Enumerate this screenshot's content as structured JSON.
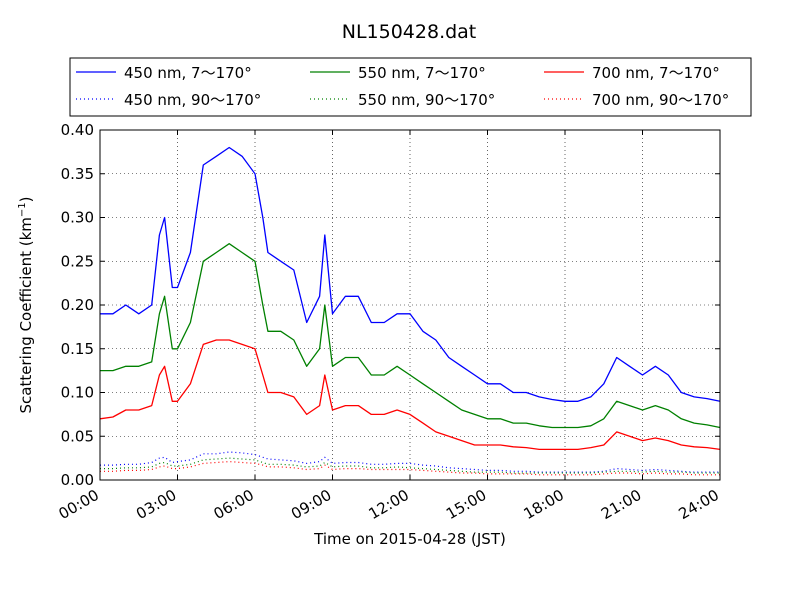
{
  "chart_data": {
    "type": "line",
    "title": "NL150428.dat",
    "xlabel": "Time on 2015-04-28 (JST)",
    "ylabel": "Scattering Coefficient (km",
    "ylabel_sup": "−1",
    "ylabel_close": ")",
    "xlim": [
      0,
      24
    ],
    "ylim": [
      0,
      0.4
    ],
    "x_ticks": [
      0,
      3,
      6,
      9,
      12,
      15,
      18,
      21,
      24
    ],
    "x_tick_labels": [
      "00:00",
      "03:00",
      "06:00",
      "09:00",
      "12:00",
      "15:00",
      "18:00",
      "21:00",
      "24:00"
    ],
    "y_ticks": [
      0,
      0.05,
      0.1,
      0.15,
      0.2,
      0.25,
      0.3,
      0.35,
      0.4
    ],
    "y_tick_labels": [
      "0.00",
      "0.05",
      "0.10",
      "0.15",
      "0.20",
      "0.25",
      "0.30",
      "0.35",
      "0.40"
    ],
    "grid": true,
    "legend_position": "top, above plot",
    "x": [
      0,
      0.5,
      1,
      1.5,
      2,
      2.3,
      2.5,
      2.8,
      3,
      3.5,
      4,
      4.5,
      5,
      5.5,
      6,
      6.3,
      6.5,
      7,
      7.5,
      8,
      8.5,
      8.7,
      9,
      9.5,
      10,
      10.5,
      11,
      11.5,
      12,
      12.5,
      13,
      13.5,
      14,
      14.5,
      15,
      15.5,
      16,
      16.5,
      17,
      17.5,
      18,
      18.5,
      19,
      19.5,
      20,
      20.5,
      21,
      21.5,
      22,
      22.5,
      23,
      23.5,
      24
    ],
    "series": [
      {
        "name": "450 nm, 7～170°",
        "color": "#0000ff",
        "style": "solid",
        "values": [
          0.19,
          0.19,
          0.2,
          0.19,
          0.2,
          0.28,
          0.3,
          0.22,
          0.22,
          0.26,
          0.36,
          0.37,
          0.38,
          0.37,
          0.35,
          0.3,
          0.26,
          0.25,
          0.24,
          0.18,
          0.21,
          0.28,
          0.19,
          0.21,
          0.21,
          0.18,
          0.18,
          0.19,
          0.19,
          0.17,
          0.16,
          0.14,
          0.13,
          0.12,
          0.11,
          0.11,
          0.1,
          0.1,
          0.095,
          0.092,
          0.09,
          0.09,
          0.095,
          0.11,
          0.14,
          0.13,
          0.12,
          0.13,
          0.12,
          0.1,
          0.095,
          0.093,
          0.09
        ]
      },
      {
        "name": "450 nm, 90～170°",
        "color": "#0000ff",
        "style": "dotted",
        "values": [
          0.017,
          0.017,
          0.018,
          0.018,
          0.02,
          0.025,
          0.026,
          0.02,
          0.021,
          0.023,
          0.03,
          0.03,
          0.032,
          0.031,
          0.029,
          0.026,
          0.024,
          0.023,
          0.022,
          0.019,
          0.021,
          0.026,
          0.019,
          0.02,
          0.02,
          0.018,
          0.018,
          0.019,
          0.019,
          0.017,
          0.016,
          0.014,
          0.013,
          0.012,
          0.011,
          0.011,
          0.01,
          0.01,
          0.009,
          0.009,
          0.009,
          0.009,
          0.009,
          0.01,
          0.013,
          0.012,
          0.011,
          0.012,
          0.011,
          0.01,
          0.009,
          0.009,
          0.009
        ]
      },
      {
        "name": "550 nm, 7～170°",
        "color": "#008000",
        "style": "solid",
        "values": [
          0.125,
          0.125,
          0.13,
          0.13,
          0.135,
          0.19,
          0.21,
          0.15,
          0.15,
          0.18,
          0.25,
          0.26,
          0.27,
          0.26,
          0.25,
          0.2,
          0.17,
          0.17,
          0.16,
          0.13,
          0.15,
          0.2,
          0.13,
          0.14,
          0.14,
          0.12,
          0.12,
          0.13,
          0.12,
          0.11,
          0.1,
          0.09,
          0.08,
          0.075,
          0.07,
          0.07,
          0.065,
          0.065,
          0.062,
          0.06,
          0.06,
          0.06,
          0.062,
          0.07,
          0.09,
          0.085,
          0.08,
          0.085,
          0.08,
          0.07,
          0.065,
          0.063,
          0.06
        ]
      },
      {
        "name": "550 nm, 90～170°",
        "color": "#008000",
        "style": "dotted",
        "values": [
          0.013,
          0.013,
          0.014,
          0.014,
          0.015,
          0.019,
          0.02,
          0.016,
          0.016,
          0.018,
          0.023,
          0.024,
          0.025,
          0.024,
          0.023,
          0.02,
          0.018,
          0.018,
          0.017,
          0.015,
          0.016,
          0.02,
          0.015,
          0.016,
          0.016,
          0.014,
          0.014,
          0.015,
          0.014,
          0.013,
          0.012,
          0.011,
          0.01,
          0.009,
          0.009,
          0.009,
          0.008,
          0.008,
          0.008,
          0.008,
          0.008,
          0.008,
          0.008,
          0.009,
          0.01,
          0.01,
          0.009,
          0.01,
          0.009,
          0.009,
          0.008,
          0.008,
          0.008
        ]
      },
      {
        "name": "700 nm, 7～170°",
        "color": "#ff0000",
        "style": "solid",
        "values": [
          0.07,
          0.072,
          0.08,
          0.08,
          0.085,
          0.12,
          0.13,
          0.09,
          0.09,
          0.11,
          0.155,
          0.16,
          0.16,
          0.155,
          0.15,
          0.12,
          0.1,
          0.1,
          0.095,
          0.075,
          0.085,
          0.12,
          0.08,
          0.085,
          0.085,
          0.075,
          0.075,
          0.08,
          0.075,
          0.065,
          0.055,
          0.05,
          0.045,
          0.04,
          0.04,
          0.04,
          0.038,
          0.037,
          0.035,
          0.035,
          0.035,
          0.035,
          0.037,
          0.04,
          0.055,
          0.05,
          0.045,
          0.048,
          0.045,
          0.04,
          0.038,
          0.037,
          0.035
        ]
      },
      {
        "name": "700 nm, 90～170°",
        "color": "#ff0000",
        "style": "dotted",
        "values": [
          0.01,
          0.01,
          0.011,
          0.011,
          0.012,
          0.015,
          0.016,
          0.013,
          0.013,
          0.015,
          0.019,
          0.02,
          0.021,
          0.02,
          0.019,
          0.017,
          0.015,
          0.015,
          0.014,
          0.012,
          0.013,
          0.017,
          0.012,
          0.013,
          0.013,
          0.012,
          0.012,
          0.012,
          0.012,
          0.011,
          0.01,
          0.009,
          0.008,
          0.008,
          0.007,
          0.007,
          0.007,
          0.007,
          0.006,
          0.006,
          0.006,
          0.006,
          0.006,
          0.007,
          0.008,
          0.008,
          0.007,
          0.008,
          0.007,
          0.007,
          0.006,
          0.006,
          0.006
        ]
      }
    ]
  }
}
